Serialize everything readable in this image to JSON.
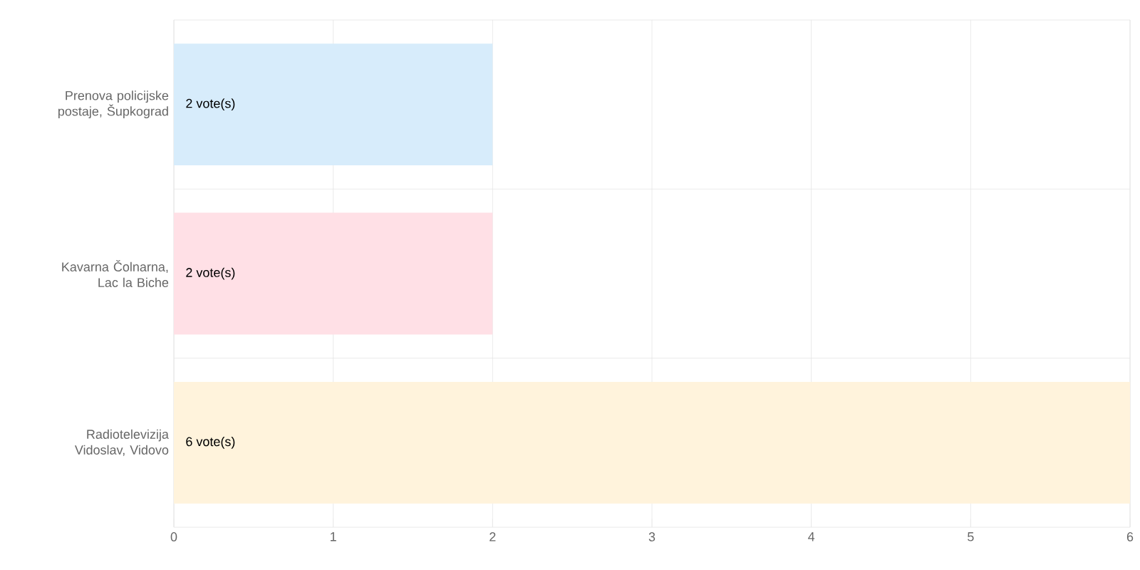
{
  "chart_data": {
    "type": "bar",
    "orientation": "horizontal",
    "categories": [
      "Prenova policijske postaje, Šupkograd",
      "Kavarna Čolnarna, Lac la Biche",
      "Radiotelevizija Vidoslav, Vidovo"
    ],
    "values": [
      2,
      2,
      6
    ],
    "colors": [
      "#d7ecfb",
      "#ffe0e6",
      "#fff3dc"
    ],
    "value_labels": [
      "2 vote(s)",
      "2 vote(s)",
      "6 vote(s)"
    ],
    "xlim": [
      0,
      6
    ],
    "xticks": [
      0,
      1,
      2,
      3,
      4,
      5,
      6
    ],
    "grid": true
  }
}
